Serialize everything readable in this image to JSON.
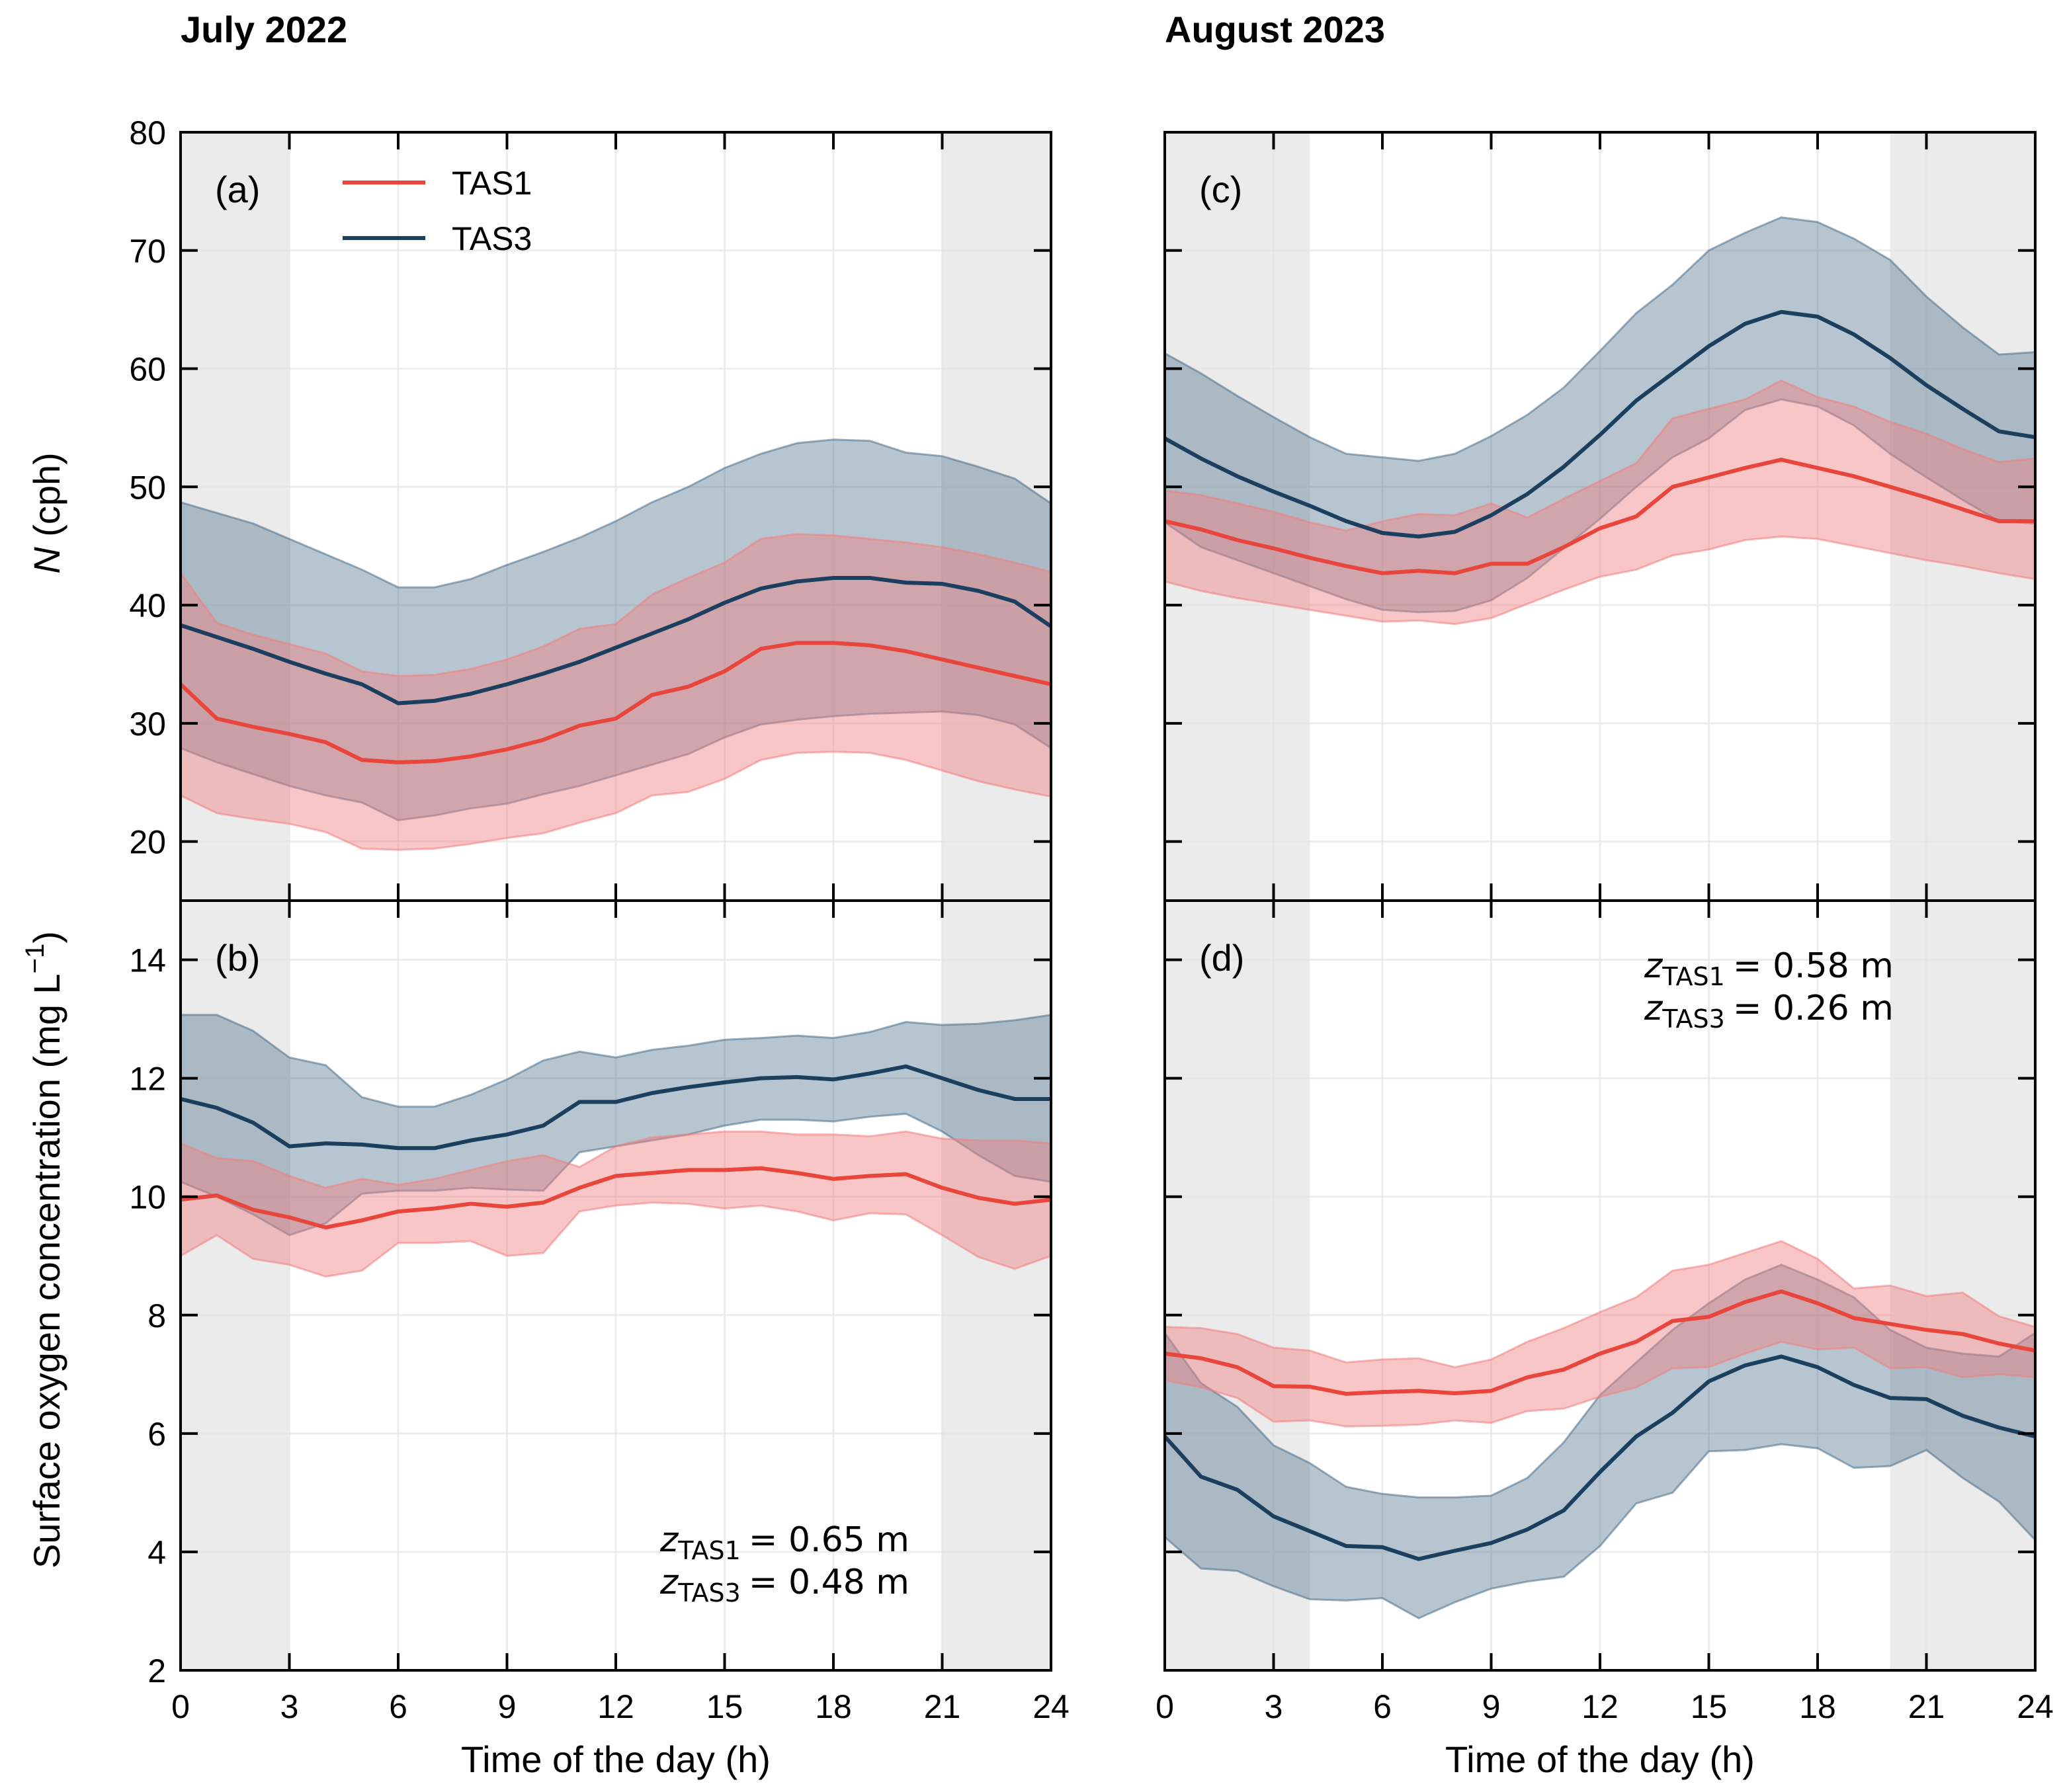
{
  "chart_data": {
    "type": "line",
    "columns": [
      {
        "title": "July 2022"
      },
      {
        "title": "August 2023"
      }
    ],
    "xlabel": "Time of the day (h)",
    "x": [
      0,
      1,
      2,
      3,
      4,
      5,
      6,
      7,
      8,
      9,
      10,
      11,
      12,
      13,
      14,
      15,
      16,
      17,
      18,
      19,
      20,
      21,
      22,
      23,
      24
    ],
    "xlim": [
      0,
      24
    ],
    "xticks": [
      0,
      3,
      6,
      9,
      12,
      15,
      18,
      21,
      24
    ],
    "legend": {
      "placement": "top-left of panel (a)",
      "entries": [
        {
          "name": "TAS1",
          "color": "#e8453c"
        },
        {
          "name": "TAS3",
          "color": "#1c3f5f"
        }
      ]
    },
    "shading_color": "#ebebeb",
    "panels": [
      {
        "id": "a",
        "tag": "(a)",
        "column": 0,
        "row": 0,
        "ylabel": "N (cph)",
        "ylabel_italic": "N",
        "ylabel_rest": " (cph)",
        "ylim": [
          15,
          80
        ],
        "yticks": [
          20,
          30,
          40,
          50,
          60,
          70,
          80
        ],
        "night_shading": [
          [
            0,
            3
          ],
          [
            21,
            24
          ]
        ],
        "series": [
          {
            "name": "TAS3",
            "mean": [
              38.3,
              37.3,
              36.3,
              35.2,
              34.2,
              33.3,
              31.7,
              31.9,
              32.5,
              33.3,
              34.2,
              35.2,
              36.4,
              37.6,
              38.8,
              40.2,
              41.4,
              42.0,
              42.3,
              42.3,
              41.9,
              41.8,
              41.2,
              40.3,
              38.2
            ],
            "upper": [
              48.7,
              47.8,
              46.9,
              45.6,
              44.3,
              43.0,
              41.5,
              41.5,
              42.2,
              43.4,
              44.5,
              45.7,
              47.1,
              48.7,
              50.0,
              51.6,
              52.8,
              53.7,
              54.0,
              53.9,
              52.9,
              52.6,
              51.7,
              50.7,
              48.6
            ],
            "lower": [
              27.9,
              26.7,
              25.7,
              24.7,
              23.9,
              23.3,
              21.8,
              22.2,
              22.8,
              23.2,
              24.0,
              24.7,
              25.6,
              26.5,
              27.4,
              28.8,
              29.9,
              30.3,
              30.6,
              30.8,
              30.9,
              31.0,
              30.7,
              29.9,
              27.9
            ]
          },
          {
            "name": "TAS1",
            "mean": [
              33.3,
              30.4,
              29.7,
              29.1,
              28.4,
              26.9,
              26.7,
              26.8,
              27.2,
              27.8,
              28.6,
              29.8,
              30.4,
              32.4,
              33.1,
              34.4,
              36.3,
              36.8,
              36.8,
              36.6,
              36.1,
              35.4,
              34.7,
              34.0,
              33.3
            ],
            "upper": [
              42.7,
              38.5,
              37.5,
              36.7,
              35.9,
              34.4,
              34.0,
              34.1,
              34.6,
              35.4,
              36.5,
              38.0,
              38.4,
              40.9,
              42.3,
              43.6,
              45.6,
              46.0,
              45.9,
              45.6,
              45.3,
              44.9,
              44.3,
              43.6,
              42.8
            ],
            "lower": [
              23.9,
              22.4,
              21.9,
              21.5,
              20.8,
              19.4,
              19.3,
              19.4,
              19.8,
              20.3,
              20.7,
              21.6,
              22.4,
              23.9,
              24.2,
              25.3,
              26.9,
              27.5,
              27.6,
              27.5,
              26.9,
              26.0,
              25.1,
              24.4,
              23.8
            ]
          }
        ]
      },
      {
        "id": "b",
        "tag": "(b)",
        "column": 0,
        "row": 1,
        "ylabel": "Surface oxygen concentration (mg L^-1)",
        "ylim": [
          2,
          15
        ],
        "yticks": [
          2,
          4,
          6,
          8,
          10,
          12,
          14
        ],
        "night_shading": [
          [
            0,
            3
          ],
          [
            21,
            24
          ]
        ],
        "annotation": {
          "placement": "bottom-right",
          "lines": [
            {
              "var": "z",
              "sub": "TAS1",
              "value": "= 0.65 m"
            },
            {
              "var": "z",
              "sub": "TAS3",
              "value": "= 0.48 m"
            }
          ]
        },
        "series": [
          {
            "name": "TAS3",
            "mean": [
              11.65,
              11.5,
              11.25,
              10.85,
              10.9,
              10.88,
              10.82,
              10.82,
              10.95,
              11.05,
              11.2,
              11.6,
              11.6,
              11.75,
              11.85,
              11.93,
              12.0,
              12.02,
              11.98,
              12.08,
              12.2,
              12.0,
              11.8,
              11.65,
              11.65
            ],
            "upper": [
              13.07,
              13.07,
              12.8,
              12.35,
              12.22,
              11.68,
              11.52,
              11.52,
              11.72,
              11.98,
              12.3,
              12.45,
              12.35,
              12.48,
              12.55,
              12.65,
              12.68,
              12.72,
              12.68,
              12.78,
              12.95,
              12.9,
              12.92,
              12.98,
              13.07
            ],
            "lower": [
              10.25,
              10.0,
              9.7,
              9.35,
              9.55,
              10.05,
              10.1,
              10.1,
              10.15,
              10.12,
              10.1,
              10.75,
              10.85,
              10.95,
              11.05,
              11.2,
              11.3,
              11.3,
              11.27,
              11.35,
              11.4,
              11.1,
              10.7,
              10.35,
              10.25
            ]
          },
          {
            "name": "TAS1",
            "mean": [
              9.95,
              10.02,
              9.78,
              9.65,
              9.48,
              9.6,
              9.75,
              9.8,
              9.88,
              9.83,
              9.9,
              10.15,
              10.35,
              10.4,
              10.45,
              10.45,
              10.48,
              10.4,
              10.3,
              10.35,
              10.38,
              10.15,
              9.98,
              9.88,
              9.95
            ],
            "upper": [
              10.9,
              10.65,
              10.6,
              10.35,
              10.15,
              10.3,
              10.2,
              10.3,
              10.45,
              10.6,
              10.7,
              10.5,
              10.85,
              11.0,
              11.05,
              11.1,
              11.1,
              11.05,
              11.05,
              11.02,
              11.1,
              10.98,
              10.95,
              10.95,
              10.9
            ],
            "lower": [
              9.0,
              9.35,
              8.95,
              8.85,
              8.65,
              8.75,
              9.22,
              9.22,
              9.25,
              9.0,
              9.05,
              9.75,
              9.85,
              9.9,
              9.88,
              9.8,
              9.85,
              9.75,
              9.6,
              9.72,
              9.7,
              9.35,
              8.98,
              8.78,
              9.0
            ]
          }
        ]
      },
      {
        "id": "c",
        "tag": "(c)",
        "column": 1,
        "row": 0,
        "ylim": [
          15,
          80
        ],
        "yticks": [
          20,
          30,
          40,
          50,
          60,
          70,
          80
        ],
        "night_shading": [
          [
            0,
            4
          ],
          [
            20,
            24
          ]
        ],
        "series": [
          {
            "name": "TAS3",
            "mean": [
              54.1,
              52.4,
              50.9,
              49.6,
              48.4,
              47.1,
              46.1,
              45.8,
              46.2,
              47.6,
              49.4,
              51.7,
              54.4,
              57.3,
              59.6,
              61.9,
              63.8,
              64.8,
              64.4,
              62.9,
              60.9,
              58.6,
              56.6,
              54.7,
              54.2
            ],
            "upper": [
              61.3,
              59.6,
              57.7,
              55.9,
              54.2,
              52.8,
              52.5,
              52.2,
              52.8,
              54.3,
              56.1,
              58.4,
              61.5,
              64.7,
              67.1,
              70.0,
              71.5,
              72.8,
              72.4,
              71.0,
              69.2,
              66.1,
              63.5,
              61.2,
              61.4
            ],
            "lower": [
              47.0,
              44.9,
              43.8,
              42.7,
              41.6,
              40.5,
              39.6,
              39.4,
              39.5,
              40.4,
              42.3,
              44.8,
              47.3,
              50.0,
              52.5,
              54.1,
              56.5,
              57.4,
              56.8,
              55.2,
              52.8,
              50.8,
              48.9,
              47.1,
              46.9
            ],
            "lower_note": "approx"
          },
          {
            "name": "TAS1",
            "mean": [
              47.1,
              46.4,
              45.5,
              44.8,
              44.0,
              43.3,
              42.7,
              42.9,
              42.7,
              43.5,
              43.5,
              44.9,
              46.5,
              47.5,
              50.0,
              50.8,
              51.6,
              52.3,
              51.6,
              50.9,
              50.0,
              49.1,
              48.1,
              47.1,
              47.1
            ],
            "upper": [
              49.7,
              49.3,
              48.6,
              47.9,
              47.0,
              46.3,
              47.1,
              47.7,
              47.6,
              48.6,
              47.4,
              49.0,
              50.5,
              52.0,
              55.8,
              56.6,
              57.4,
              59.0,
              57.6,
              56.8,
              55.5,
              54.5,
              53.2,
              52.1,
              52.4
            ],
            "lower": [
              42.0,
              41.2,
              40.6,
              40.1,
              39.6,
              39.1,
              38.6,
              38.7,
              38.4,
              38.9,
              40.1,
              41.3,
              42.4,
              43.0,
              44.2,
              44.7,
              45.5,
              45.8,
              45.6,
              45.0,
              44.4,
              43.8,
              43.3,
              42.7,
              42.2
            ]
          }
        ]
      },
      {
        "id": "d",
        "tag": "(d)",
        "column": 1,
        "row": 1,
        "ylim": [
          2,
          15
        ],
        "yticks": [
          2,
          4,
          6,
          8,
          10,
          12,
          14
        ],
        "night_shading": [
          [
            0,
            4
          ],
          [
            20,
            24
          ]
        ],
        "annotation": {
          "placement": "top-right",
          "lines": [
            {
              "var": "z",
              "sub": "TAS1",
              "value": "= 0.58 m"
            },
            {
              "var": "z",
              "sub": "TAS3",
              "value": "= 0.26 m"
            }
          ]
        },
        "series": [
          {
            "name": "TAS3",
            "mean": [
              5.95,
              5.27,
              5.05,
              4.6,
              4.35,
              4.1,
              4.08,
              3.88,
              4.02,
              4.15,
              4.38,
              4.7,
              5.35,
              5.95,
              6.35,
              6.88,
              7.15,
              7.3,
              7.12,
              6.82,
              6.6,
              6.58,
              6.3,
              6.1,
              5.95
            ],
            "upper": [
              7.7,
              6.85,
              6.45,
              5.8,
              5.5,
              5.1,
              4.98,
              4.92,
              4.92,
              4.95,
              5.25,
              5.85,
              6.65,
              7.2,
              7.75,
              8.2,
              8.6,
              8.85,
              8.6,
              8.3,
              7.75,
              7.45,
              7.35,
              7.3,
              7.7
            ],
            "lower": [
              4.25,
              3.72,
              3.68,
              3.42,
              3.2,
              3.18,
              3.22,
              2.88,
              3.15,
              3.38,
              3.5,
              3.58,
              4.1,
              4.82,
              5.0,
              5.7,
              5.72,
              5.82,
              5.75,
              5.42,
              5.45,
              5.72,
              5.25,
              4.85,
              4.2
            ]
          },
          {
            "name": "TAS1",
            "mean": [
              7.35,
              7.27,
              7.12,
              6.8,
              6.79,
              6.67,
              6.7,
              6.72,
              6.68,
              6.72,
              6.95,
              7.08,
              7.35,
              7.55,
              7.9,
              7.97,
              8.22,
              8.4,
              8.2,
              7.95,
              7.85,
              7.75,
              7.68,
              7.52,
              7.4
            ],
            "upper": [
              7.8,
              7.78,
              7.68,
              7.45,
              7.4,
              7.2,
              7.25,
              7.27,
              7.12,
              7.25,
              7.55,
              7.78,
              8.05,
              8.3,
              8.75,
              8.85,
              9.05,
              9.25,
              8.95,
              8.45,
              8.5,
              8.32,
              8.38,
              7.98,
              7.8
            ],
            "lower": [
              6.9,
              6.78,
              6.6,
              6.2,
              6.22,
              6.12,
              6.13,
              6.15,
              6.22,
              6.18,
              6.38,
              6.42,
              6.62,
              6.78,
              7.1,
              7.12,
              7.35,
              7.55,
              7.42,
              7.45,
              7.1,
              7.12,
              6.95,
              7.0,
              6.95
            ]
          }
        ]
      }
    ]
  }
}
